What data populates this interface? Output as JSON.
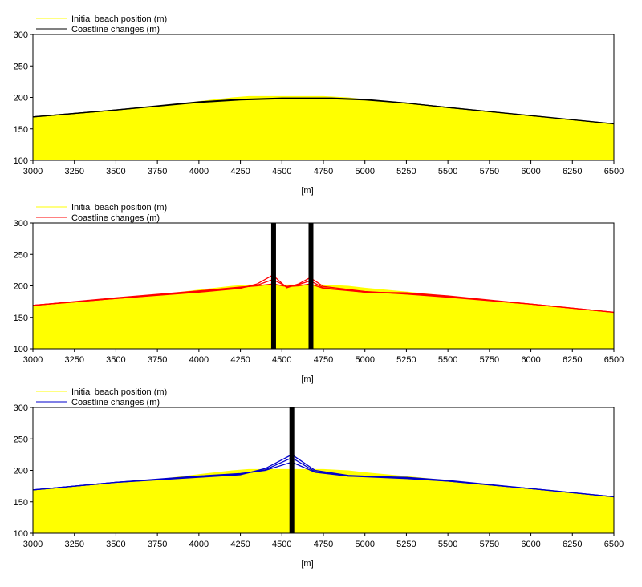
{
  "chart_data": [
    {
      "type": "area",
      "xlabel": "[m]",
      "xlim": [
        3000,
        6500
      ],
      "ylim": [
        100,
        300
      ],
      "xticks": [
        3000,
        3250,
        3500,
        3750,
        4000,
        4250,
        4500,
        4750,
        5000,
        5250,
        5500,
        5750,
        6000,
        6250,
        6500
      ],
      "yticks": [
        100,
        150,
        200,
        250,
        300
      ],
      "legend": [
        {
          "label": "Initial beach position (m)",
          "color": "#ffff00"
        },
        {
          "label": "Coastline changes (m)",
          "color": "#000000"
        }
      ],
      "groynes": [],
      "initial": {
        "x": [
          3000,
          3250,
          3500,
          3750,
          4000,
          4200,
          4300,
          4500,
          4750,
          4900,
          5000,
          5250,
          5500,
          5750,
          6000,
          6250,
          6500
        ],
        "y": [
          169,
          175,
          180,
          186,
          194,
          200,
          202,
          202,
          202,
          200,
          197,
          191,
          184,
          177,
          171,
          165,
          158
        ]
      },
      "series": [
        {
          "name": "Coastline changes (m)",
          "color": "#000000",
          "x": [
            3000,
            3500,
            4000,
            4250,
            4500,
            4800,
            5000,
            5250,
            5500,
            6000,
            6500
          ],
          "y": [
            169,
            180,
            192,
            196,
            198,
            198,
            196,
            191,
            184,
            171,
            158
          ]
        },
        {
          "name": "Coastline changes (m)",
          "color": "#000000",
          "x": [
            3000,
            3500,
            4000,
            4250,
            4500,
            4800,
            5000,
            5250,
            5500,
            6000,
            6500
          ],
          "y": [
            169,
            180,
            193,
            197,
            199,
            199,
            197,
            191,
            184,
            171,
            158
          ]
        }
      ]
    },
    {
      "type": "area",
      "xlabel": "[m]",
      "xlim": [
        3000,
        6500
      ],
      "ylim": [
        100,
        300
      ],
      "xticks": [
        3000,
        3250,
        3500,
        3750,
        4000,
        4250,
        4500,
        4750,
        5000,
        5250,
        5500,
        5750,
        6000,
        6250,
        6500
      ],
      "yticks": [
        100,
        150,
        200,
        250,
        300
      ],
      "legend": [
        {
          "label": "Initial beach position (m)",
          "color": "#ffff00"
        },
        {
          "label": "Coastline changes (m)",
          "color": "#ff0000"
        }
      ],
      "groynes": [
        4450,
        4675
      ],
      "initial": {
        "x": [
          3000,
          3250,
          3500,
          3750,
          4000,
          4200,
          4300,
          4500,
          4750,
          4900,
          5000,
          5250,
          5500,
          5750,
          6000,
          6250,
          6500
        ],
        "y": [
          169,
          175,
          180,
          186,
          194,
          200,
          202,
          202,
          202,
          200,
          197,
          191,
          184,
          177,
          171,
          165,
          158
        ]
      },
      "series": [
        {
          "name": "Coastline changes (m)",
          "color": "#ff0000",
          "x": [
            3000,
            3500,
            4000,
            4250,
            4350,
            4445,
            4530,
            4600,
            4670,
            4750,
            5000,
            5250,
            5500,
            6000,
            6500
          ],
          "y": [
            169,
            180,
            190,
            196,
            203,
            217,
            197,
            203,
            213,
            199,
            191,
            187,
            182,
            171,
            158
          ]
        },
        {
          "name": "Coastline changes (m)",
          "color": "#ff0000",
          "x": [
            3000,
            3500,
            4000,
            4250,
            4350,
            4445,
            4530,
            4600,
            4670,
            4750,
            5000,
            5250,
            5500,
            6000,
            6500
          ],
          "y": [
            169,
            180,
            191,
            197,
            201,
            210,
            199,
            202,
            208,
            197,
            190,
            188,
            183,
            171,
            158
          ]
        },
        {
          "name": "Coastline changes (m)",
          "color": "#ff0000",
          "x": [
            3000,
            3500,
            4000,
            4250,
            4350,
            4445,
            4530,
            4600,
            4670,
            4750,
            5000,
            5250,
            5500,
            6000,
            6500
          ],
          "y": [
            169,
            181,
            192,
            198,
            200,
            203,
            199,
            200,
            203,
            196,
            190,
            189,
            184,
            171,
            158
          ]
        }
      ]
    },
    {
      "type": "area",
      "xlabel": "[m]",
      "xlim": [
        3000,
        6500
      ],
      "ylim": [
        100,
        300
      ],
      "xticks": [
        3000,
        3250,
        3500,
        3750,
        4000,
        4250,
        4500,
        4750,
        5000,
        5250,
        5500,
        5750,
        6000,
        6250,
        6500
      ],
      "yticks": [
        100,
        150,
        200,
        250,
        300
      ],
      "legend": [
        {
          "label": "Initial beach position (m)",
          "color": "#ffff00"
        },
        {
          "label": "Coastline changes (m)",
          "color": "#0000cc"
        }
      ],
      "groynes": [
        4560
      ],
      "initial": {
        "x": [
          3000,
          3250,
          3500,
          3750,
          4000,
          4200,
          4300,
          4500,
          4750,
          4900,
          5000,
          5250,
          5500,
          5750,
          6000,
          6250,
          6500
        ],
        "y": [
          169,
          175,
          180,
          186,
          194,
          200,
          202,
          202,
          202,
          200,
          197,
          191,
          184,
          177,
          171,
          165,
          158
        ]
      },
      "series": [
        {
          "name": "Coastline changes (m)",
          "color": "#0000cc",
          "x": [
            3000,
            3500,
            4000,
            4250,
            4400,
            4560,
            4700,
            4900,
            5250,
            5500,
            6000,
            6500
          ],
          "y": [
            169,
            181,
            189,
            193,
            203,
            225,
            200,
            192,
            188,
            183,
            171,
            158
          ]
        },
        {
          "name": "Coastline changes (m)",
          "color": "#0000cc",
          "x": [
            3000,
            3500,
            4000,
            4250,
            4400,
            4560,
            4700,
            4900,
            5250,
            5500,
            6000,
            6500
          ],
          "y": [
            169,
            181,
            190,
            194,
            201,
            220,
            198,
            191,
            187,
            183,
            171,
            158
          ]
        },
        {
          "name": "Coastline changes (m)",
          "color": "#0000cc",
          "x": [
            3000,
            3500,
            4000,
            4250,
            4400,
            4560,
            4700,
            4900,
            5250,
            5500,
            6000,
            6500
          ],
          "y": [
            169,
            181,
            191,
            195,
            200,
            213,
            197,
            191,
            189,
            184,
            171,
            158
          ]
        }
      ]
    }
  ]
}
